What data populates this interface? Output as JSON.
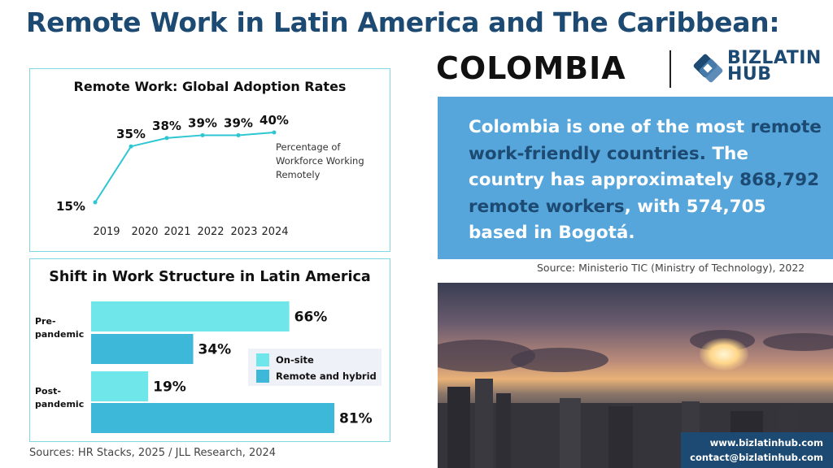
{
  "title": "Remote Work in Latin America and The Caribbean:",
  "country": "COLOMBIA",
  "logo": {
    "name": "BIZ LATIN HUB logo",
    "text_line1": "BIZLATIN",
    "text_line2": "HUB"
  },
  "info": {
    "part1": "Colombia is one of the most ",
    "highlight1": "remote work-friendly countries.",
    "part2": " The country has approximately ",
    "highlight2": "868,792 remote workers",
    "part3": ", with 574,705 based in Bogotá."
  },
  "info_source": "Source: Ministerio TIC  (Ministry of Technology), 2022",
  "sources": "Sources: HR Stacks, 2025 /  JLL Research, 2024",
  "contact": {
    "website": "www.bizlatinhub.com",
    "email": "contact@bizlatinhub.com"
  },
  "colors": {
    "title": "#1d4a72",
    "line": "#2ec6d3",
    "onsite": "#6ee6ea",
    "remote": "#3db8d8",
    "info_bg": "#56a5db",
    "panel_border": "#7fd8df"
  },
  "chart_data": [
    {
      "type": "line",
      "title": "Remote Work: Global Adoption Rates",
      "x": [
        "2019",
        "2020",
        "2021",
        "2022",
        "2023",
        "2024"
      ],
      "series": [
        {
          "values": [
            15,
            35,
            38,
            39,
            39,
            40
          ]
        }
      ],
      "data_labels": [
        "15%",
        "35%",
        "38%",
        "39%",
        "39%",
        "40%"
      ],
      "annotation": "Percentage of Workforce Working Remotely",
      "ylim": [
        15,
        40
      ],
      "grid": false
    },
    {
      "type": "bar",
      "orientation": "horizontal",
      "title": "Shift in Work Structure in Latin America",
      "categories": [
        "Pre-pandemic",
        "Post-pandemic"
      ],
      "category_lines": [
        [
          "Pre-",
          "pandemic"
        ],
        [
          "Post-",
          "pandemic"
        ]
      ],
      "series": [
        {
          "name": "On-site",
          "values": [
            66,
            19
          ]
        },
        {
          "name": "Remote and hybrid",
          "values": [
            34,
            81
          ]
        }
      ],
      "data_labels": [
        [
          "66%",
          "19%"
        ],
        [
          "34%",
          "81%"
        ]
      ],
      "legend_position": "right",
      "xlim": [
        0,
        81
      ]
    }
  ]
}
